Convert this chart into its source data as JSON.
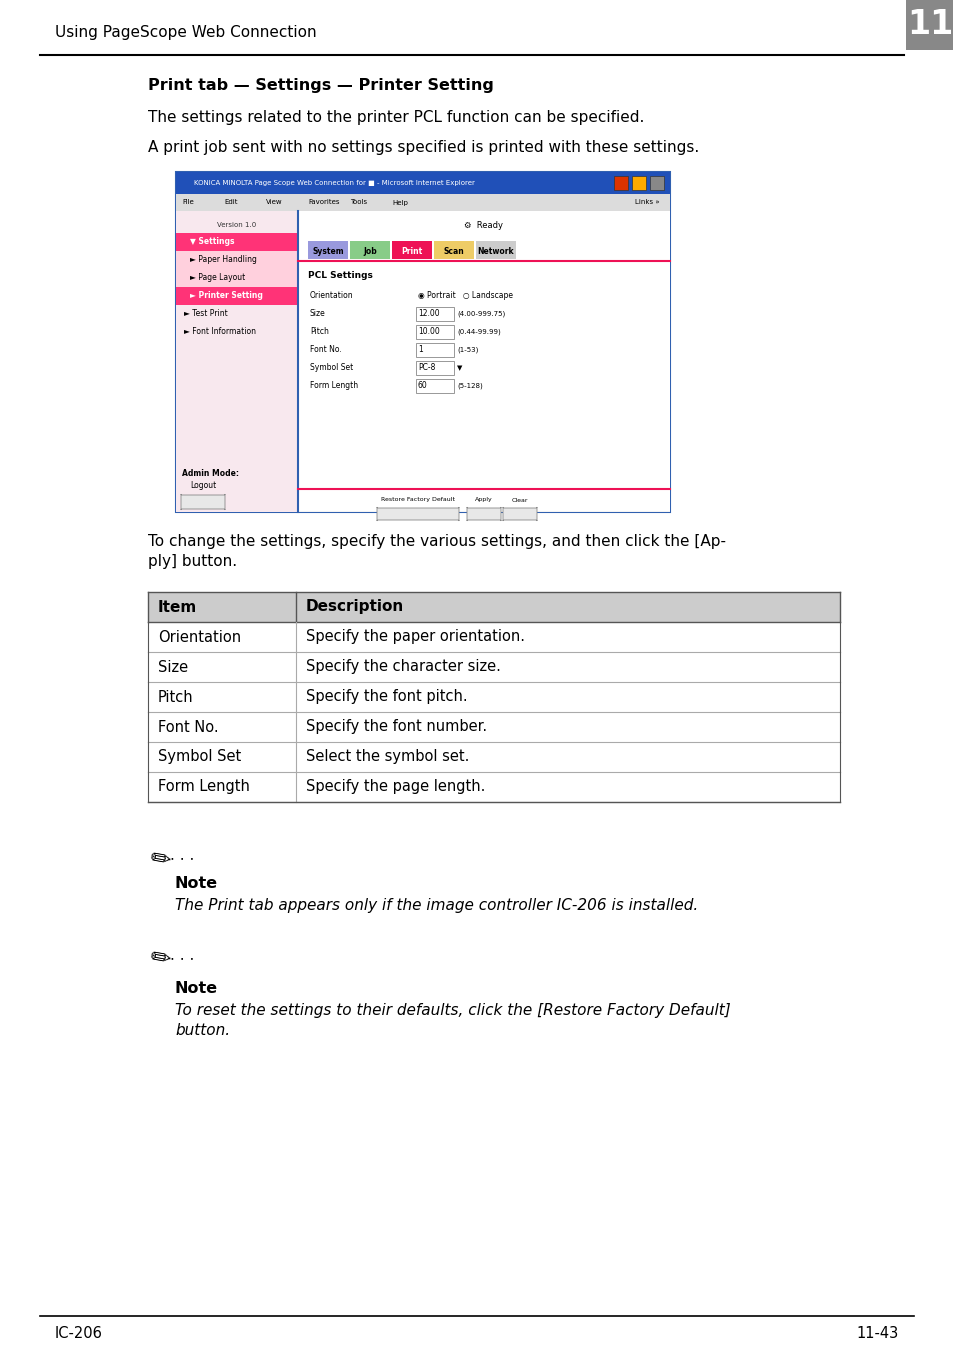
{
  "page_header_text": "Using PageScope Web Connection",
  "page_number_box": "11",
  "page_footer_left": "IC-206",
  "page_footer_right": "11-43",
  "section_title": "Print tab — Settings — Printer Setting",
  "para1": "The settings related to the printer PCL function can be specified.",
  "para2": "A print job sent with no settings specified is printed with these settings.",
  "after_line1": "To change the settings, specify the various settings, and then click the [Ap-",
  "after_line2": "ply] button.",
  "table_header": [
    "Item",
    "Description"
  ],
  "table_rows": [
    [
      "Orientation",
      "Specify the paper orientation."
    ],
    [
      "Size",
      "Specify the character size."
    ],
    [
      "Pitch",
      "Specify the font pitch."
    ],
    [
      "Font No.",
      "Specify the font number."
    ],
    [
      "Symbol Set",
      "Select the symbol set."
    ],
    [
      "Form Length",
      "Specify the page length."
    ]
  ],
  "note1_title": "Note",
  "note1_text": "The Print tab appears only if the image controller IC-206 is installed.",
  "note2_title": "Note",
  "note2_line1": "To reset the settings to their defaults, click the [Restore Factory Default]",
  "note2_line2": "button.",
  "bg_color": "#ffffff"
}
